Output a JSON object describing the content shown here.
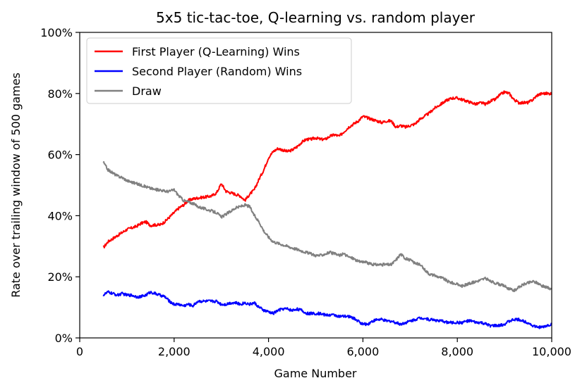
{
  "chart_data": {
    "type": "line",
    "title": "5x5 tic-tac-toe, Q-learning vs. random player",
    "xlabel": "Game Number",
    "ylabel": "Rate over trailing window of 500 games",
    "xlim": [
      0,
      10000
    ],
    "ylim": [
      0,
      100
    ],
    "x_ticks": [
      0,
      2000,
      4000,
      6000,
      8000,
      10000
    ],
    "x_tick_labels": [
      "0",
      "2,000",
      "4,000",
      "6,000",
      "8,000",
      "10,000"
    ],
    "y_ticks": [
      0,
      20,
      40,
      60,
      80,
      100
    ],
    "y_tick_labels": [
      "0%",
      "20%",
      "40%",
      "60%",
      "80%",
      "100%"
    ],
    "grid": false,
    "legend_position": "top-left",
    "series": [
      {
        "name": "First Player (Q-Learning) Wins",
        "color": "#ff0000",
        "x": [
          500,
          600,
          700,
          800,
          900,
          1000,
          1100,
          1200,
          1300,
          1400,
          1500,
          1600,
          1700,
          1800,
          1900,
          2000,
          2100,
          2200,
          2300,
          2400,
          2500,
          2600,
          2700,
          2800,
          2900,
          3000,
          3100,
          3200,
          3300,
          3400,
          3500,
          3600,
          3700,
          3800,
          3900,
          4000,
          4100,
          4200,
          4300,
          4400,
          4500,
          4600,
          4700,
          4800,
          4900,
          5000,
          5100,
          5200,
          5300,
          5400,
          5500,
          5600,
          5700,
          5800,
          5900,
          6000,
          6100,
          6200,
          6300,
          6400,
          6500,
          6600,
          6700,
          6800,
          6900,
          7000,
          7100,
          7200,
          7300,
          7400,
          7500,
          7600,
          7700,
          7800,
          7900,
          8000,
          8100,
          8200,
          8300,
          8400,
          8500,
          8600,
          8700,
          8800,
          8900,
          9000,
          9100,
          9200,
          9300,
          9400,
          9500,
          9600,
          9700,
          9800,
          9900,
          10000
        ],
        "values": [
          29.5,
          31.5,
          32.5,
          33.5,
          34.5,
          35.5,
          36,
          36.5,
          37.5,
          38,
          36.8,
          37,
          37,
          38,
          39.5,
          41,
          42.5,
          43.5,
          45,
          45.5,
          45.8,
          46,
          46.2,
          46.5,
          47.5,
          50.5,
          48,
          47.5,
          47,
          46.5,
          45,
          47,
          48.5,
          52,
          55,
          59,
          61,
          62,
          61.5,
          61,
          61.5,
          62.5,
          64,
          65,
          65,
          65.5,
          65,
          65,
          66,
          66.5,
          66,
          67.5,
          69,
          70,
          71,
          72.5,
          72,
          71.5,
          71,
          70.5,
          71,
          71,
          69,
          69.5,
          69,
          69.5,
          70,
          71.5,
          72.5,
          73.5,
          75,
          76,
          77,
          78,
          78.5,
          78.5,
          78,
          77.5,
          77,
          76.5,
          77,
          76.5,
          77.5,
          78,
          79.5,
          80.5,
          80,
          78,
          77,
          77,
          77,
          78,
          79.5,
          80,
          80,
          80
        ]
      },
      {
        "name": "Second Player (Random) Wins",
        "color": "#0000ff",
        "x": [
          500,
          600,
          700,
          800,
          900,
          1000,
          1100,
          1200,
          1300,
          1400,
          1500,
          1600,
          1700,
          1800,
          1900,
          2000,
          2100,
          2200,
          2300,
          2400,
          2500,
          2600,
          2700,
          2800,
          2900,
          3000,
          3100,
          3200,
          3300,
          3400,
          3500,
          3600,
          3700,
          3800,
          3900,
          4000,
          4100,
          4200,
          4300,
          4400,
          4500,
          4600,
          4700,
          4800,
          4900,
          5000,
          5100,
          5200,
          5300,
          5400,
          5500,
          5600,
          5700,
          5800,
          5900,
          6000,
          6100,
          6200,
          6300,
          6400,
          6500,
          6600,
          6700,
          6800,
          6900,
          7000,
          7100,
          7200,
          7300,
          7400,
          7500,
          7600,
          7700,
          7800,
          7900,
          8000,
          8100,
          8200,
          8300,
          8400,
          8500,
          8600,
          8700,
          8800,
          8900,
          9000,
          9100,
          9200,
          9300,
          9400,
          9500,
          9600,
          9700,
          9800,
          9900,
          10000
        ],
        "values": [
          14,
          15,
          14.5,
          14,
          14.5,
          14,
          14,
          13.5,
          13.5,
          14,
          15,
          14.5,
          14,
          13.5,
          12,
          11,
          11,
          10.5,
          11,
          10.5,
          12,
          12,
          12,
          12,
          12,
          11,
          11,
          11.5,
          11.5,
          11,
          11.5,
          11,
          11.5,
          10,
          9,
          8.5,
          8,
          9,
          9.5,
          9.5,
          9,
          9.5,
          9,
          8,
          8,
          8,
          8,
          7.5,
          7.5,
          7.5,
          7,
          7,
          7,
          6.5,
          5.5,
          4.5,
          4.5,
          5.5,
          6,
          6,
          5.5,
          5.5,
          5,
          4.5,
          5,
          5.5,
          6,
          6.5,
          6.5,
          6,
          6,
          5.5,
          5.5,
          5,
          5,
          5,
          5,
          5.5,
          5.5,
          5,
          5,
          4.5,
          4,
          4,
          4,
          4.5,
          5.5,
          6,
          6,
          5.5,
          5,
          4,
          3.5,
          3.5,
          4,
          4.5
        ]
      },
      {
        "name": "Draw",
        "color": "#808080",
        "x": [
          500,
          600,
          700,
          800,
          900,
          1000,
          1100,
          1200,
          1300,
          1400,
          1500,
          1600,
          1700,
          1800,
          1900,
          2000,
          2100,
          2200,
          2300,
          2400,
          2500,
          2600,
          2700,
          2800,
          2900,
          3000,
          3100,
          3200,
          3300,
          3400,
          3500,
          3600,
          3700,
          3800,
          3900,
          4000,
          4100,
          4200,
          4300,
          4400,
          4500,
          4600,
          4700,
          4800,
          4900,
          5000,
          5100,
          5200,
          5300,
          5400,
          5500,
          5600,
          5700,
          5800,
          5900,
          6000,
          6100,
          6200,
          6300,
          6400,
          6500,
          6600,
          6700,
          6800,
          6900,
          7000,
          7100,
          7200,
          7300,
          7400,
          7500,
          7600,
          7700,
          7800,
          7900,
          8000,
          8100,
          8200,
          8300,
          8400,
          8500,
          8600,
          8700,
          8800,
          8900,
          9000,
          9100,
          9200,
          9300,
          9400,
          9500,
          9600,
          9700,
          9800,
          9900,
          10000
        ],
        "values": [
          57.5,
          55,
          54,
          53,
          52.5,
          51.5,
          51,
          50.5,
          50,
          49.5,
          49,
          48.5,
          48.5,
          48,
          48,
          48.5,
          46.5,
          45,
          44.5,
          44,
          43,
          42.5,
          42,
          41.5,
          41,
          39.5,
          40.5,
          41.5,
          42.5,
          43,
          43.5,
          43,
          40,
          38,
          35,
          33,
          31.5,
          31,
          30.5,
          30,
          29.5,
          29,
          28.5,
          28,
          27.5,
          27,
          27,
          27.5,
          28,
          27.5,
          27,
          27.5,
          26.5,
          26,
          25,
          25,
          24.5,
          24,
          24,
          24,
          24,
          24,
          25.5,
          27.5,
          26,
          25.5,
          24.5,
          24,
          22.5,
          21,
          20.5,
          20,
          19.5,
          18.5,
          18,
          17.5,
          17,
          17.5,
          18,
          18.5,
          19,
          19.5,
          18.5,
          18,
          17.5,
          17,
          16,
          15.5,
          16.5,
          17.5,
          18,
          18.5,
          18,
          17,
          16.5,
          16
        ]
      }
    ]
  }
}
